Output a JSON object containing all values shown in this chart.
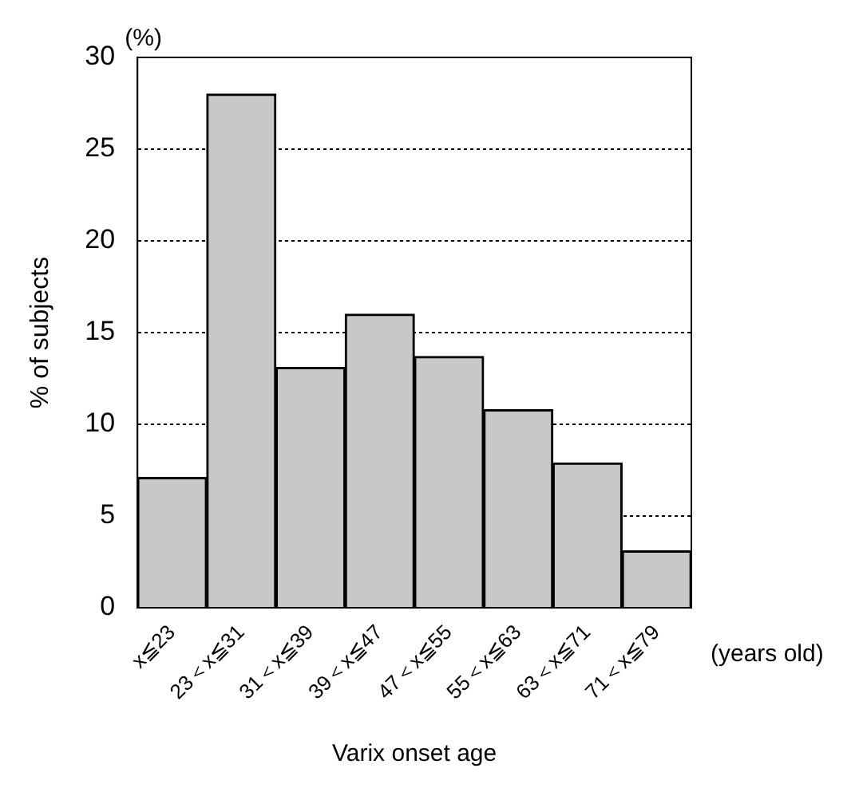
{
  "chart_data": {
    "type": "bar",
    "xlabel": "Varix onset age",
    "ylabel": "% of subjects",
    "categories": [
      "x≦23",
      "23＜x≦31",
      "31＜x≦39",
      "39＜x≦47",
      "47＜x≦55",
      "55＜x≦63",
      "63＜x≦71",
      "71＜x≦79"
    ],
    "values": [
      7.1,
      28.0,
      13.1,
      16.0,
      13.7,
      10.8,
      7.9,
      3.1
    ],
    "color": "#c8c8c8",
    "ylim": [
      0,
      30
    ],
    "yticks": [
      0,
      5,
      10,
      15,
      20,
      25,
      30
    ],
    "grid": "y",
    "annotations": [
      "(%)",
      "(years old)"
    ]
  }
}
